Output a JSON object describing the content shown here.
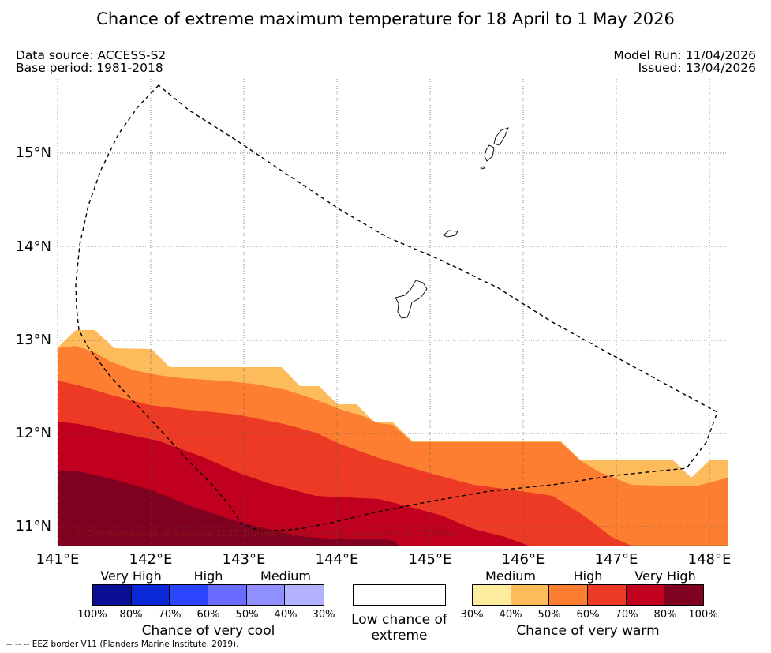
{
  "header": {
    "title": "Chance of extreme maximum temperature for 18 April to 1 May 2026",
    "data_source": "Data source: ACCESS-S2",
    "base_period": "Base period: 1981-2018",
    "model_run": "Model Run: 11/04/2026",
    "issued": "Issued: 13/04/2026"
  },
  "map": {
    "lat_labels": [
      "15°N",
      "14°N",
      "13°N",
      "12°N",
      "11°N"
    ],
    "lon_labels": [
      "141°E",
      "142°E",
      "143°E",
      "144°E",
      "145°E",
      "146°E",
      "147°E",
      "148°E"
    ],
    "extent": {
      "lon": [
        141.0,
        148.2
      ],
      "lat": [
        10.8,
        15.8
      ]
    },
    "copyright": "© Commonwealth of Australia 2026, Bureau of Meteorology, supported by COSPPac",
    "eez_note": "-- -- -- EEZ border V11 (Flanders Marine Institute, 2019).",
    "warm_band_colors": [
      "#fdbb5c",
      "#fd7e31",
      "#ec3a25",
      "#c0001e",
      "#800020"
    ]
  },
  "legend": {
    "cool": {
      "categories": [
        "Very High",
        "High",
        "Medium"
      ],
      "percentages": [
        "100%",
        "80%",
        "70%",
        "60%",
        "50%",
        "40%",
        "30%"
      ],
      "colors": [
        "#0a0f96",
        "#0b28d6",
        "#2a44ff",
        "#6a6cff",
        "#8f8fff",
        "#b2b2ff"
      ],
      "caption": "Chance of very cool"
    },
    "low": {
      "caption": "Low chance of extreme"
    },
    "warm": {
      "categories": [
        "Medium",
        "High",
        "Very High"
      ],
      "percentages": [
        "30%",
        "40%",
        "50%",
        "60%",
        "70%",
        "80%",
        "100%"
      ],
      "colors": [
        "#feec9e",
        "#fdbb5c",
        "#fd7e31",
        "#ec3a25",
        "#c0001e",
        "#800020"
      ],
      "caption": "Chance of very warm"
    }
  }
}
